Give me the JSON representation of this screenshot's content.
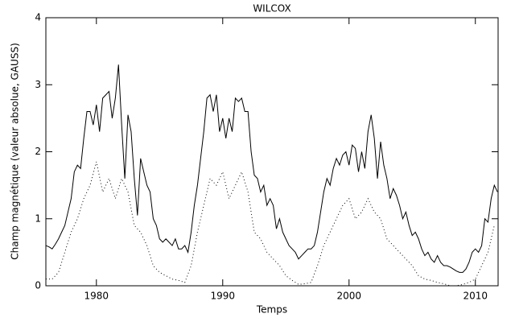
{
  "chart_data": {
    "type": "line",
    "title": "WILCOX",
    "x_label": "Temps",
    "y_label": "Champ magnétique (valeur absolue, GAUSS)",
    "xlim": [
      1976,
      2011.8
    ],
    "xticks": [
      1980,
      1990,
      2000,
      2010
    ],
    "ylim": [
      0,
      4
    ],
    "yticks": [
      0,
      1,
      2,
      3,
      4
    ],
    "series": [
      {
        "color": "#000000",
        "line_style": "solid",
        "x": [
          1976,
          1976.25,
          1976.5,
          1976.75,
          1977,
          1977.25,
          1977.5,
          1977.75,
          1978,
          1978.25,
          1978.5,
          1978.75,
          1979,
          1979.25,
          1979.5,
          1979.75,
          1980,
          1980.25,
          1980.5,
          1980.75,
          1981,
          1981.25,
          1981.5,
          1981.75,
          1982,
          1982.25,
          1982.5,
          1982.75,
          1983,
          1983.25,
          1983.5,
          1983.75,
          1984,
          1984.25,
          1984.5,
          1984.75,
          1985,
          1985.25,
          1985.5,
          1985.75,
          1986,
          1986.25,
          1986.5,
          1986.75,
          1987,
          1987.25,
          1987.5,
          1987.75,
          1988,
          1988.25,
          1988.5,
          1988.75,
          1989,
          1989.25,
          1989.5,
          1989.75,
          1990,
          1990.25,
          1990.5,
          1990.75,
          1991,
          1991.25,
          1991.5,
          1991.75,
          1992,
          1992.25,
          1992.5,
          1992.75,
          1993,
          1993.25,
          1993.5,
          1993.75,
          1994,
          1994.25,
          1994.5,
          1994.75,
          1995,
          1995.25,
          1995.5,
          1995.75,
          1996,
          1996.25,
          1996.5,
          1996.75,
          1997,
          1997.25,
          1997.5,
          1997.75,
          1998,
          1998.25,
          1998.5,
          1998.75,
          1999,
          1999.25,
          1999.5,
          1999.75,
          2000,
          2000.25,
          2000.5,
          2000.75,
          2001,
          2001.25,
          2001.5,
          2001.75,
          2002,
          2002.25,
          2002.5,
          2002.75,
          2003,
          2003.25,
          2003.5,
          2003.75,
          2004,
          2004.25,
          2004.5,
          2004.75,
          2005,
          2005.25,
          2005.5,
          2005.75,
          2006,
          2006.25,
          2006.5,
          2006.75,
          2007,
          2007.25,
          2007.5,
          2007.75,
          2008,
          2008.25,
          2008.5,
          2008.75,
          2009,
          2009.25,
          2009.5,
          2009.75,
          2010,
          2010.25,
          2010.5,
          2010.75,
          2011,
          2011.25,
          2011.5,
          2011.75
        ],
        "values": [
          0.6,
          0.58,
          0.55,
          0.62,
          0.7,
          0.8,
          0.9,
          1.1,
          1.3,
          1.7,
          1.8,
          1.75,
          2.2,
          2.6,
          2.6,
          2.4,
          2.7,
          2.3,
          2.8,
          2.85,
          2.9,
          2.5,
          2.8,
          3.3,
          2.4,
          1.6,
          2.55,
          2.3,
          1.6,
          1.05,
          1.9,
          1.7,
          1.5,
          1.4,
          1.0,
          0.9,
          0.7,
          0.65,
          0.7,
          0.65,
          0.6,
          0.7,
          0.55,
          0.55,
          0.6,
          0.5,
          0.8,
          1.2,
          1.5,
          1.9,
          2.3,
          2.8,
          2.85,
          2.6,
          2.85,
          2.3,
          2.5,
          2.2,
          2.5,
          2.3,
          2.8,
          2.75,
          2.8,
          2.6,
          2.6,
          2.0,
          1.65,
          1.6,
          1.4,
          1.5,
          1.2,
          1.3,
          1.2,
          0.85,
          1.0,
          0.8,
          0.7,
          0.6,
          0.55,
          0.5,
          0.4,
          0.45,
          0.5,
          0.55,
          0.55,
          0.6,
          0.8,
          1.1,
          1.4,
          1.6,
          1.5,
          1.75,
          1.9,
          1.8,
          1.95,
          2.0,
          1.8,
          2.1,
          2.05,
          1.7,
          2.0,
          1.75,
          2.3,
          2.55,
          2.2,
          1.6,
          2.15,
          1.8,
          1.6,
          1.3,
          1.45,
          1.35,
          1.2,
          1.0,
          1.1,
          0.9,
          0.75,
          0.8,
          0.7,
          0.55,
          0.45,
          0.5,
          0.4,
          0.35,
          0.45,
          0.35,
          0.3,
          0.3,
          0.28,
          0.25,
          0.22,
          0.2,
          0.2,
          0.25,
          0.35,
          0.5,
          0.55,
          0.5,
          0.6,
          1.0,
          0.95,
          1.3,
          1.5,
          1.4
        ]
      },
      {
        "color": "#000000",
        "line_style": "dotted",
        "x": [
          1976,
          1976.5,
          1977,
          1977.5,
          1978,
          1978.5,
          1979,
          1979.5,
          1980,
          1980.5,
          1981,
          1981.5,
          1982,
          1982.5,
          1983,
          1983.5,
          1984,
          1984.5,
          1985,
          1985.5,
          1986,
          1986.5,
          1987,
          1987.5,
          1988,
          1988.5,
          1989,
          1989.5,
          1990,
          1990.5,
          1991,
          1991.5,
          1992,
          1992.5,
          1993,
          1993.5,
          1994,
          1994.5,
          1995,
          1995.5,
          1996,
          1996.5,
          1997,
          1997.5,
          1998,
          1998.5,
          1999,
          1999.5,
          2000,
          2000.5,
          2001,
          2001.5,
          2002,
          2002.5,
          2003,
          2003.5,
          2004,
          2004.5,
          2005,
          2005.5,
          2006,
          2006.5,
          2007,
          2007.5,
          2008,
          2008.5,
          2009,
          2009.5,
          2010,
          2010.5,
          2011,
          2011.5
        ],
        "values": [
          0.1,
          0.1,
          0.2,
          0.5,
          0.8,
          1.0,
          1.3,
          1.5,
          1.85,
          1.4,
          1.6,
          1.3,
          1.6,
          1.4,
          0.9,
          0.8,
          0.6,
          0.3,
          0.2,
          0.15,
          0.1,
          0.08,
          0.05,
          0.3,
          0.8,
          1.2,
          1.6,
          1.5,
          1.7,
          1.3,
          1.5,
          1.7,
          1.4,
          0.8,
          0.7,
          0.5,
          0.4,
          0.3,
          0.15,
          0.08,
          0.02,
          0.03,
          0.05,
          0.3,
          0.6,
          0.8,
          1.0,
          1.2,
          1.3,
          1.0,
          1.1,
          1.3,
          1.1,
          1.0,
          0.7,
          0.6,
          0.5,
          0.4,
          0.3,
          0.15,
          0.1,
          0.08,
          0.05,
          0.03,
          0.0,
          0.0,
          0.02,
          0.05,
          0.1,
          0.3,
          0.5,
          0.9
        ]
      }
    ]
  }
}
